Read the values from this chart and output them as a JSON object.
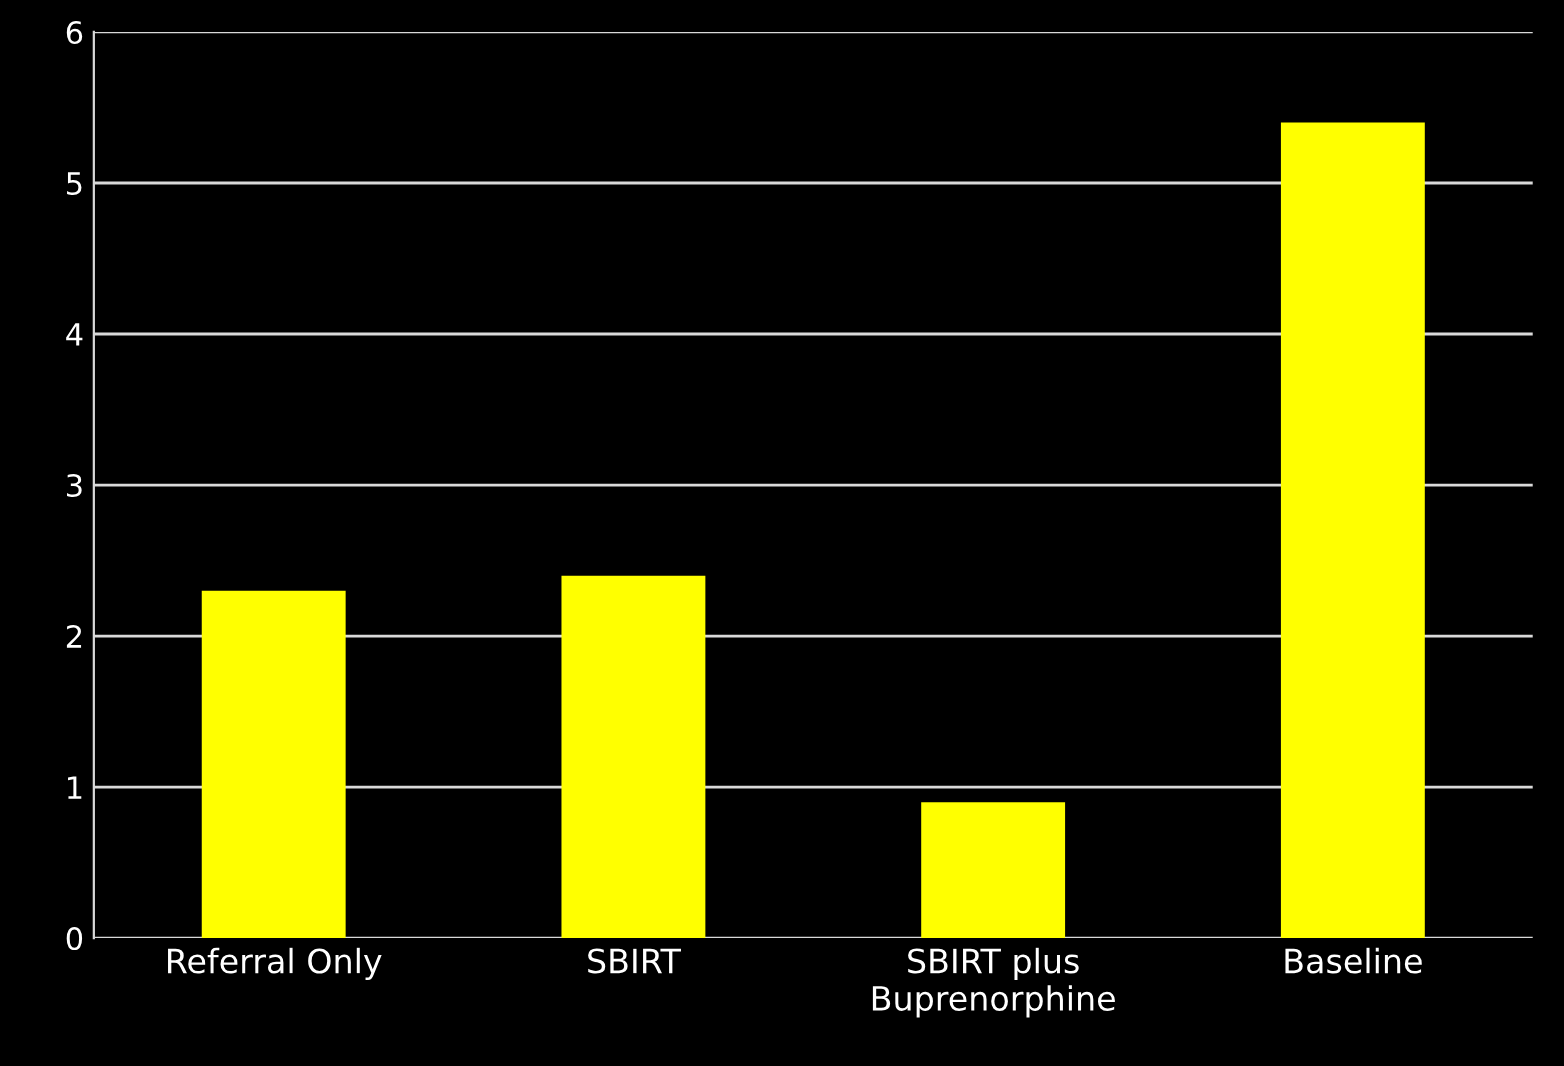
{
  "chart_data": {
    "type": "bar",
    "categories": [
      "Referral Only",
      "SBIRT",
      "SBIRT plus\nBuprenorphine",
      "Baseline"
    ],
    "values": [
      2.3,
      2.4,
      0.9,
      5.4
    ],
    "color": "#ffff00",
    "ylim": [
      0,
      6
    ],
    "yticks": [
      0,
      1,
      2,
      3,
      4,
      5,
      6
    ],
    "grid": "y"
  }
}
